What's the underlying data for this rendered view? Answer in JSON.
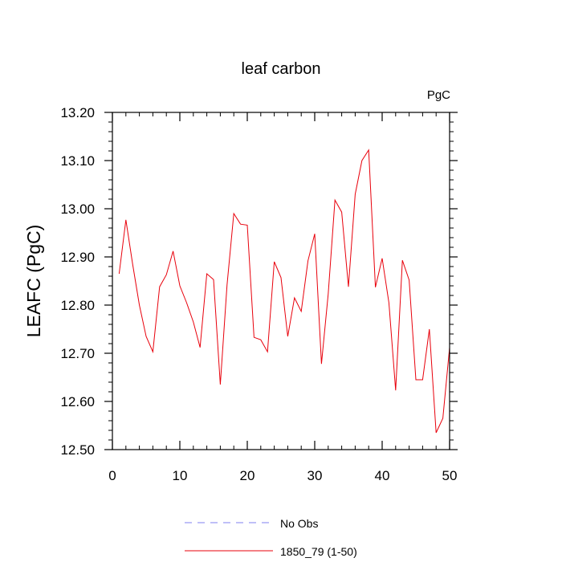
{
  "chart_data": {
    "type": "line",
    "title": "leaf carbon",
    "units_label": "PgC",
    "xlabel": "",
    "ylabel": "LEAFC  (PgC)",
    "xlim": [
      0,
      50
    ],
    "ylim": [
      12.5,
      13.2
    ],
    "x_ticks": [
      0,
      10,
      20,
      30,
      40,
      50
    ],
    "x_tick_labels": [
      "0",
      "10",
      "20",
      "30",
      "40",
      "50"
    ],
    "y_ticks": [
      12.5,
      12.6,
      12.7,
      12.8,
      12.9,
      13.0,
      13.1,
      13.2
    ],
    "y_tick_labels": [
      "12.50",
      "12.60",
      "12.70",
      "12.80",
      "12.90",
      "13.00",
      "13.10",
      "13.20"
    ],
    "grid": false,
    "legend_position": "bottom-center",
    "series": [
      {
        "name": "1850_79 (1-50)",
        "color": "#e8000b",
        "dash": "solid",
        "x": [
          1,
          2,
          3,
          4,
          5,
          6,
          7,
          8,
          9,
          10,
          11,
          12,
          13,
          14,
          15,
          16,
          17,
          18,
          19,
          20,
          21,
          22,
          23,
          24,
          25,
          26,
          27,
          28,
          29,
          30,
          31,
          32,
          33,
          34,
          35,
          36,
          37,
          38,
          39,
          40,
          41,
          42,
          43,
          44,
          45,
          46,
          47,
          48,
          49,
          50
        ],
        "values": [
          12.865,
          12.977,
          12.885,
          12.8,
          12.735,
          12.703,
          12.838,
          12.863,
          12.912,
          12.84,
          12.805,
          12.765,
          12.712,
          12.865,
          12.853,
          12.635,
          12.842,
          12.99,
          12.968,
          12.966,
          12.733,
          12.728,
          12.703,
          12.89,
          12.857,
          12.735,
          12.815,
          12.787,
          12.892,
          12.948,
          12.678,
          12.823,
          13.018,
          12.993,
          12.838,
          13.03,
          13.1,
          13.122,
          12.837,
          12.897,
          12.805,
          12.623,
          12.893,
          12.852,
          12.645,
          12.645,
          12.75,
          12.535,
          12.565,
          12.712
        ]
      },
      {
        "name": "No Obs",
        "color": "#7f7ff2",
        "dash": "dashed",
        "x": [],
        "values": []
      }
    ]
  }
}
